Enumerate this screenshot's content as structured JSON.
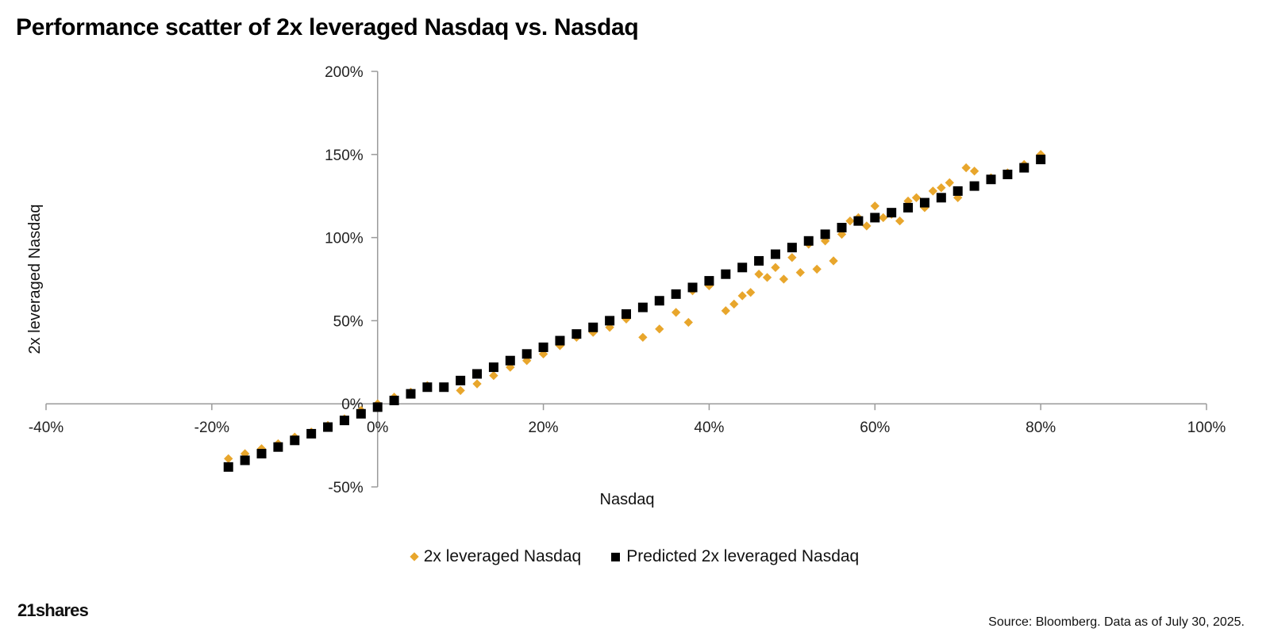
{
  "chart_data": {
    "type": "scatter",
    "title": "Performance scatter of 2x leveraged Nasdaq vs. Nasdaq",
    "xlabel": "Nasdaq",
    "ylabel": "2x leveraged Nasdaq",
    "xlim": [
      -40,
      100
    ],
    "ylim": [
      -50,
      200
    ],
    "x_ticks": [
      "-40%",
      "-20%",
      "0%",
      "20%",
      "40%",
      "60%",
      "80%",
      "100%"
    ],
    "y_ticks": [
      "-50%",
      "0%",
      "50%",
      "100%",
      "150%",
      "200%"
    ],
    "legend_position": "bottom",
    "series": [
      {
        "name": "2x leveraged Nasdaq",
        "marker": "diamond",
        "color": "#e8a62c",
        "points": [
          [
            -18,
            -33
          ],
          [
            -16,
            -30
          ],
          [
            -14,
            -27
          ],
          [
            -12,
            -24
          ],
          [
            -10,
            -20
          ],
          [
            -8,
            -17
          ],
          [
            -6,
            -13
          ],
          [
            -4,
            -9
          ],
          [
            -2,
            -4
          ],
          [
            0,
            0
          ],
          [
            2,
            4
          ],
          [
            4,
            7
          ],
          [
            6,
            11
          ],
          [
            10,
            8
          ],
          [
            12,
            12
          ],
          [
            14,
            17
          ],
          [
            16,
            22
          ],
          [
            18,
            26
          ],
          [
            20,
            30
          ],
          [
            22,
            35
          ],
          [
            24,
            40
          ],
          [
            26,
            43
          ],
          [
            28,
            46
          ],
          [
            30,
            51
          ],
          [
            32,
            40
          ],
          [
            34,
            45
          ],
          [
            36,
            55
          ],
          [
            37.5,
            49
          ],
          [
            38,
            68
          ],
          [
            40,
            71
          ],
          [
            42,
            56
          ],
          [
            43,
            60
          ],
          [
            44,
            65
          ],
          [
            45,
            67
          ],
          [
            46,
            78
          ],
          [
            47,
            76
          ],
          [
            48,
            82
          ],
          [
            49,
            75
          ],
          [
            50,
            88
          ],
          [
            51,
            79
          ],
          [
            52,
            96
          ],
          [
            53,
            81
          ],
          [
            54,
            98
          ],
          [
            55,
            86
          ],
          [
            56,
            102
          ],
          [
            57,
            110
          ],
          [
            58,
            112
          ],
          [
            59,
            107
          ],
          [
            60,
            119
          ],
          [
            61,
            112
          ],
          [
            62,
            114
          ],
          [
            63,
            110
          ],
          [
            64,
            122
          ],
          [
            65,
            124
          ],
          [
            66,
            118
          ],
          [
            67,
            128
          ],
          [
            68,
            130
          ],
          [
            69,
            133
          ],
          [
            70,
            124
          ],
          [
            71,
            142
          ],
          [
            72,
            140
          ],
          [
            74,
            136
          ],
          [
            76,
            139
          ],
          [
            78,
            144
          ],
          [
            80,
            150
          ]
        ]
      },
      {
        "name": "Predicted 2x leveraged Nasdaq",
        "marker": "square",
        "color": "#000000",
        "points": [
          [
            -18,
            -38
          ],
          [
            -16,
            -34
          ],
          [
            -14,
            -30
          ],
          [
            -12,
            -26
          ],
          [
            -10,
            -22
          ],
          [
            -8,
            -18
          ],
          [
            -6,
            -14
          ],
          [
            -4,
            -10
          ],
          [
            -2,
            -6
          ],
          [
            0,
            -2
          ],
          [
            2,
            2
          ],
          [
            4,
            6
          ],
          [
            6,
            10
          ],
          [
            8,
            10
          ],
          [
            10,
            14
          ],
          [
            12,
            18
          ],
          [
            14,
            22
          ],
          [
            16,
            26
          ],
          [
            18,
            30
          ],
          [
            20,
            34
          ],
          [
            22,
            38
          ],
          [
            24,
            42
          ],
          [
            26,
            46
          ],
          [
            28,
            50
          ],
          [
            30,
            54
          ],
          [
            32,
            58
          ],
          [
            34,
            62
          ],
          [
            36,
            66
          ],
          [
            38,
            70
          ],
          [
            40,
            74
          ],
          [
            42,
            78
          ],
          [
            44,
            82
          ],
          [
            46,
            86
          ],
          [
            48,
            90
          ],
          [
            50,
            94
          ],
          [
            52,
            98
          ],
          [
            54,
            102
          ],
          [
            56,
            106
          ],
          [
            58,
            110
          ],
          [
            60,
            112
          ],
          [
            62,
            115
          ],
          [
            64,
            118
          ],
          [
            66,
            121
          ],
          [
            68,
            124
          ],
          [
            70,
            128
          ],
          [
            72,
            131
          ],
          [
            74,
            135
          ],
          [
            76,
            138
          ],
          [
            78,
            142
          ],
          [
            80,
            147
          ]
        ]
      }
    ]
  },
  "legend": {
    "items": [
      {
        "label": "2x leveraged Nasdaq"
      },
      {
        "label": "Predicted 2x leveraged Nasdaq"
      }
    ]
  },
  "footer": {
    "brand": "21shares",
    "source": "Source: Bloomberg. Data as of July 30, 2025."
  }
}
